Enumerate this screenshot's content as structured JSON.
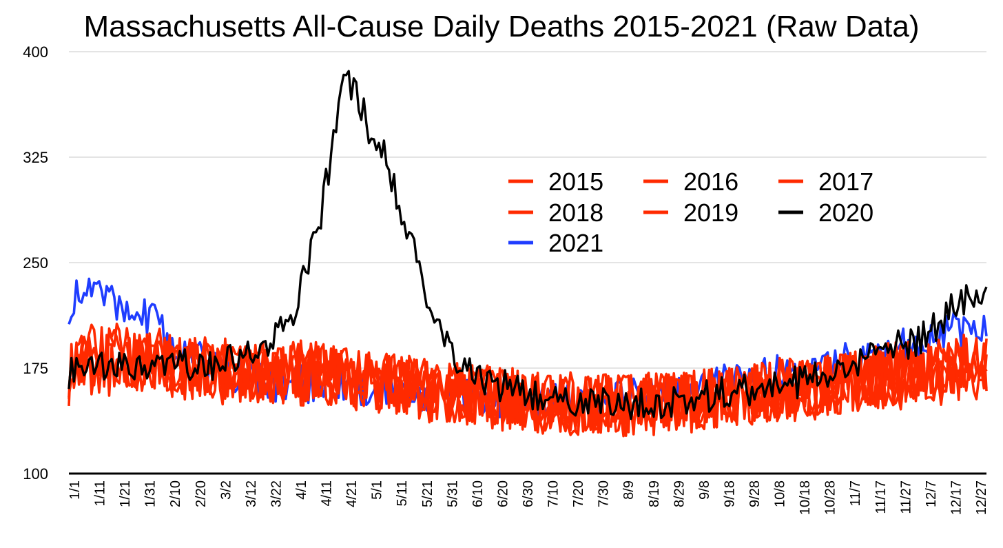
{
  "chart_data": {
    "type": "line",
    "title": "Massachusetts All-Cause Daily Deaths 2015-2021 (Raw Data)",
    "xlabel": "",
    "ylabel": "",
    "ylim": [
      100,
      400
    ],
    "yticks": [
      100,
      175,
      250,
      325,
      400
    ],
    "grid": true,
    "legend_position": "center-right",
    "x_tick_labels": [
      "1/1",
      "1/11",
      "1/21",
      "1/31",
      "2/10",
      "2/20",
      "3/2",
      "3/12",
      "3/22",
      "4/1",
      "4/11",
      "4/21",
      "5/1",
      "5/11",
      "5/21",
      "5/31",
      "6/10",
      "6/20",
      "6/30",
      "7/10",
      "7/20",
      "7/30",
      "8/9",
      "8/19",
      "8/29",
      "9/8",
      "9/18",
      "9/28",
      "10/8",
      "10/18",
      "10/28",
      "11/7",
      "11/17",
      "11/27",
      "12/7",
      "12/17",
      "12/27"
    ],
    "series": [
      {
        "name": "2015",
        "color": "#ff2a00",
        "points": [
          [
            "1/1",
            175
          ],
          [
            "1/21",
            182
          ],
          [
            "2/10",
            178
          ],
          [
            "3/2",
            172
          ],
          [
            "3/22",
            170
          ],
          [
            "4/11",
            172
          ],
          [
            "5/1",
            166
          ],
          [
            "5/21",
            160
          ],
          [
            "6/10",
            157
          ],
          [
            "6/30",
            152
          ],
          [
            "7/20",
            150
          ],
          [
            "8/9",
            150
          ],
          [
            "8/29",
            150
          ],
          [
            "9/18",
            155
          ],
          [
            "10/8",
            158
          ],
          [
            "10/28",
            162
          ],
          [
            "11/17",
            168
          ],
          [
            "12/7",
            170
          ],
          [
            "12/27",
            175
          ]
        ]
      },
      {
        "name": "2016",
        "color": "#ff2a00",
        "points": [
          [
            "1/1",
            170
          ],
          [
            "1/21",
            178
          ],
          [
            "2/10",
            176
          ],
          [
            "3/2",
            170
          ],
          [
            "3/22",
            168
          ],
          [
            "4/11",
            170
          ],
          [
            "5/1",
            164
          ],
          [
            "5/21",
            158
          ],
          [
            "6/10",
            155
          ],
          [
            "6/30",
            150
          ],
          [
            "7/20",
            148
          ],
          [
            "8/9",
            148
          ],
          [
            "8/29",
            149
          ],
          [
            "9/18",
            153
          ],
          [
            "10/8",
            157
          ],
          [
            "10/28",
            160
          ],
          [
            "11/17",
            166
          ],
          [
            "12/7",
            168
          ],
          [
            "12/27",
            172
          ]
        ]
      },
      {
        "name": "2017",
        "color": "#ff2a00",
        "points": [
          [
            "1/1",
            178
          ],
          [
            "1/21",
            185
          ],
          [
            "2/10",
            180
          ],
          [
            "3/2",
            174
          ],
          [
            "3/22",
            172
          ],
          [
            "4/11",
            171
          ],
          [
            "5/1",
            165
          ],
          [
            "5/21",
            160
          ],
          [
            "6/10",
            156
          ],
          [
            "6/30",
            151
          ],
          [
            "7/20",
            150
          ],
          [
            "8/9",
            149
          ],
          [
            "8/29",
            151
          ],
          [
            "9/18",
            155
          ],
          [
            "10/8",
            159
          ],
          [
            "10/28",
            163
          ],
          [
            "11/17",
            170
          ],
          [
            "12/7",
            174
          ],
          [
            "12/27",
            178
          ]
        ]
      },
      {
        "name": "2018",
        "color": "#ff2a00",
        "points": [
          [
            "1/1",
            182
          ],
          [
            "1/21",
            186
          ],
          [
            "2/10",
            180
          ],
          [
            "3/2",
            175
          ],
          [
            "3/22",
            172
          ],
          [
            "4/11",
            173
          ],
          [
            "5/1",
            166
          ],
          [
            "5/21",
            161
          ],
          [
            "6/10",
            157
          ],
          [
            "6/30",
            152
          ],
          [
            "7/20",
            150
          ],
          [
            "8/9",
            150
          ],
          [
            "8/29",
            152
          ],
          [
            "9/18",
            156
          ],
          [
            "10/8",
            160
          ],
          [
            "10/28",
            164
          ],
          [
            "11/17",
            170
          ],
          [
            "12/7",
            175
          ],
          [
            "12/27",
            180
          ]
        ]
      },
      {
        "name": "2019",
        "color": "#ff2a00",
        "points": [
          [
            "1/1",
            176
          ],
          [
            "1/21",
            180
          ],
          [
            "2/10",
            177
          ],
          [
            "3/2",
            172
          ],
          [
            "3/22",
            170
          ],
          [
            "4/11",
            170
          ],
          [
            "5/1",
            164
          ],
          [
            "5/21",
            159
          ],
          [
            "6/10",
            155
          ],
          [
            "6/30",
            151
          ],
          [
            "7/20",
            149
          ],
          [
            "8/9",
            148
          ],
          [
            "8/29",
            150
          ],
          [
            "9/18",
            154
          ],
          [
            "10/8",
            158
          ],
          [
            "10/28",
            162
          ],
          [
            "11/17",
            168
          ],
          [
            "12/7",
            172
          ],
          [
            "12/27",
            176
          ]
        ]
      },
      {
        "name": "2020",
        "color": "#000000",
        "points": [
          [
            "1/1",
            172
          ],
          [
            "1/21",
            175
          ],
          [
            "2/10",
            176
          ],
          [
            "3/2",
            178
          ],
          [
            "3/12",
            184
          ],
          [
            "3/22",
            192
          ],
          [
            "4/1",
            215
          ],
          [
            "4/11",
            285
          ],
          [
            "4/16",
            335
          ],
          [
            "4/21",
            385
          ],
          [
            "4/26",
            365
          ],
          [
            "5/1",
            340
          ],
          [
            "5/6",
            330
          ],
          [
            "5/11",
            300
          ],
          [
            "5/16",
            270
          ],
          [
            "5/21",
            235
          ],
          [
            "5/26",
            210
          ],
          [
            "5/31",
            190
          ],
          [
            "6/10",
            170
          ],
          [
            "6/30",
            158
          ],
          [
            "7/20",
            152
          ],
          [
            "8/9",
            150
          ],
          [
            "8/29",
            152
          ],
          [
            "9/18",
            157
          ],
          [
            "10/8",
            163
          ],
          [
            "10/28",
            168
          ],
          [
            "11/17",
            183
          ],
          [
            "12/7",
            198
          ],
          [
            "12/17",
            218
          ],
          [
            "12/27",
            228
          ]
        ]
      },
      {
        "name": "2021",
        "color": "#1f3dff",
        "points": [
          [
            "1/1",
            220
          ],
          [
            "1/11",
            232
          ],
          [
            "1/21",
            222
          ],
          [
            "1/31",
            215
          ],
          [
            "2/10",
            195
          ],
          [
            "2/20",
            182
          ],
          [
            "3/2",
            175
          ],
          [
            "3/22",
            165
          ],
          [
            "4/11",
            164
          ],
          [
            "5/1",
            160
          ],
          [
            "5/21",
            157
          ],
          [
            "6/10",
            155
          ],
          [
            "6/30",
            152
          ],
          [
            "7/20",
            152
          ],
          [
            "8/9",
            154
          ],
          [
            "8/29",
            158
          ],
          [
            "9/18",
            164
          ],
          [
            "10/8",
            170
          ],
          [
            "10/28",
            176
          ],
          [
            "11/17",
            186
          ],
          [
            "12/7",
            196
          ],
          [
            "12/27",
            205
          ]
        ]
      }
    ]
  }
}
